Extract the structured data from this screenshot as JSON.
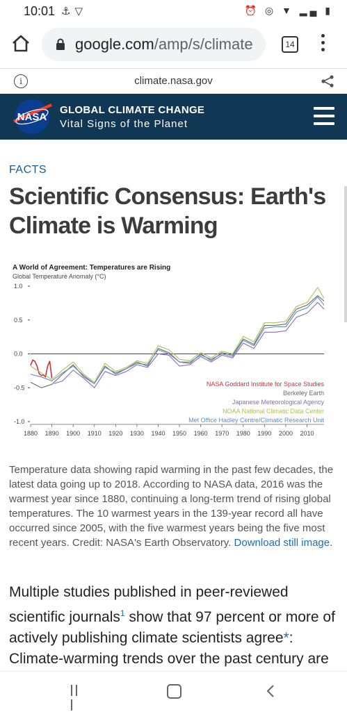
{
  "status_bar": {
    "time": "10:01",
    "left_icons": [
      "usb-icon",
      "wifi-outline-icon"
    ],
    "right_icons": [
      "alarm-icon",
      "hotspot-icon",
      "wifi-icon",
      "signal-icon",
      "battery-icon"
    ]
  },
  "browser": {
    "url_host": "google.com",
    "url_path": "/amp/s/climate",
    "tab_count": "14"
  },
  "amp_bar": {
    "domain": "climate.nasa.gov"
  },
  "site_header": {
    "logo_text": "NASA",
    "title": "GLOBAL CLIMATE CHANGE",
    "subtitle": "Vital Signs of the Planet"
  },
  "article": {
    "section": "FACTS",
    "title": "Scientific Consensus: Earth's Climate is Warming",
    "caption": "Temperature data showing rapid warming in the past few decades, the latest data going up to 2018. According to NASA data, 2016 was the warmest year since 1880, continuing a long-term trend of rising global temperatures. The 10 warmest years in the 139-year record all have occurred since 2005, with the five warmest years being the five most recent years. Credit: NASA's Earth Observatory.",
    "caption_link": "Download still image",
    "caption_end": ".",
    "body_part1": "Multiple studies published in peer-reviewed scientific journals",
    "body_sup": "1",
    "body_part2": " show that 97 percent or more of actively publishing climate scientists agree",
    "body_star": "*",
    "body_part3": ": Climate-warming trends over the past century are extremely likely due to human activities. In"
  },
  "chart_data": {
    "type": "line",
    "title": "A World of Agreement: Temperatures are Rising",
    "ylabel": "Global Temperature Anomaly (°C)",
    "xlim": [
      1880,
      2018
    ],
    "ylim": [
      -1.0,
      1.0
    ],
    "x_ticks": [
      1880,
      1890,
      1900,
      1910,
      1920,
      1930,
      1940,
      1950,
      1960,
      1970,
      1980,
      1990,
      2000,
      2010
    ],
    "y_ticks": [
      {
        "value": 1.0,
        "label": "1.0"
      },
      {
        "value": 0.5,
        "label": "0.5"
      },
      {
        "value": 0.0,
        "label": "0.0"
      },
      {
        "value": -0.5,
        "label": "-0.5"
      },
      {
        "value": -1.0,
        "label": "-1.0"
      }
    ],
    "zero_line": true,
    "legend_position": "bottom-right",
    "series": [
      {
        "name": "NASA Goddard Institute for Space Studies",
        "color": "#c8333b",
        "start_year": 1880,
        "end_year": 1890,
        "years": [
          1880,
          1881,
          1882,
          1883,
          1884,
          1885,
          1886,
          1887,
          1888,
          1889,
          1890
        ],
        "values": [
          -0.17,
          -0.09,
          -0.11,
          -0.18,
          -0.29,
          -0.32,
          -0.31,
          -0.34,
          -0.18,
          -0.11,
          -0.36
        ]
      },
      {
        "name": "Berkeley Earth",
        "color": "#6a6a6a",
        "years": [
          1880,
          1885,
          1890,
          1895,
          1900,
          1905,
          1910,
          1915,
          1920,
          1925,
          1930,
          1935,
          1940,
          1945,
          1950,
          1955,
          1960,
          1965,
          1970,
          1975,
          1980,
          1985,
          1990,
          1995,
          2000,
          2005,
          2010,
          2015,
          2018
        ],
        "values": [
          -0.42,
          -0.5,
          -0.45,
          -0.3,
          -0.16,
          -0.34,
          -0.44,
          -0.18,
          -0.3,
          -0.22,
          -0.12,
          -0.18,
          0.08,
          0.02,
          -0.12,
          -0.14,
          0.0,
          -0.1,
          0.02,
          -0.02,
          0.22,
          0.14,
          0.42,
          0.42,
          0.44,
          0.66,
          0.72,
          0.86,
          0.78
        ]
      },
      {
        "name": "Japanese Meteorological Agency",
        "color": "#8c6bb1",
        "years": [
          1891,
          1895,
          1900,
          1905,
          1910,
          1915,
          1920,
          1925,
          1930,
          1935,
          1940,
          1945,
          1950,
          1955,
          1960,
          1965,
          1970,
          1975,
          1980,
          1985,
          1990,
          1995,
          2000,
          2005,
          2010,
          2015,
          2018
        ],
        "values": [
          -0.44,
          -0.4,
          -0.24,
          -0.36,
          -0.5,
          -0.26,
          -0.32,
          -0.26,
          -0.16,
          -0.2,
          0.0,
          -0.02,
          -0.18,
          -0.16,
          -0.04,
          -0.12,
          -0.02,
          -0.06,
          0.16,
          0.08,
          0.32,
          0.32,
          0.34,
          0.54,
          0.6,
          0.76,
          0.66
        ]
      },
      {
        "name": "NOAA National Climatic Data Center",
        "color": "#a8c255",
        "years": [
          1880,
          1885,
          1890,
          1895,
          1900,
          1905,
          1910,
          1915,
          1920,
          1925,
          1930,
          1935,
          1940,
          1945,
          1950,
          1955,
          1960,
          1965,
          1970,
          1975,
          1980,
          1985,
          1990,
          1995,
          2000,
          2005,
          2010,
          2015,
          2018
        ],
        "values": [
          -0.18,
          -0.28,
          -0.38,
          -0.24,
          -0.12,
          -0.3,
          -0.42,
          -0.14,
          -0.26,
          -0.2,
          -0.1,
          -0.14,
          0.12,
          0.06,
          -0.08,
          -0.1,
          0.02,
          -0.06,
          0.04,
          0.0,
          0.26,
          0.18,
          0.46,
          0.46,
          0.48,
          0.7,
          0.76,
          0.98,
          0.82
        ]
      },
      {
        "name": "Met Office Hadley Centre/Climatic Research Unit",
        "color": "#5b8fc7",
        "years": [
          1880,
          1885,
          1890,
          1895,
          1900,
          1905,
          1910,
          1915,
          1920,
          1925,
          1930,
          1935,
          1940,
          1945,
          1950,
          1955,
          1960,
          1965,
          1970,
          1975,
          1980,
          1985,
          1990,
          1995,
          2000,
          2005,
          2010,
          2015,
          2018
        ],
        "values": [
          -0.3,
          -0.34,
          -0.4,
          -0.28,
          -0.18,
          -0.32,
          -0.44,
          -0.2,
          -0.28,
          -0.22,
          -0.14,
          -0.16,
          0.06,
          0.0,
          -0.12,
          -0.12,
          -0.02,
          -0.08,
          0.0,
          -0.04,
          0.2,
          0.12,
          0.38,
          0.4,
          0.4,
          0.62,
          0.68,
          0.84,
          0.72
        ]
      }
    ]
  }
}
